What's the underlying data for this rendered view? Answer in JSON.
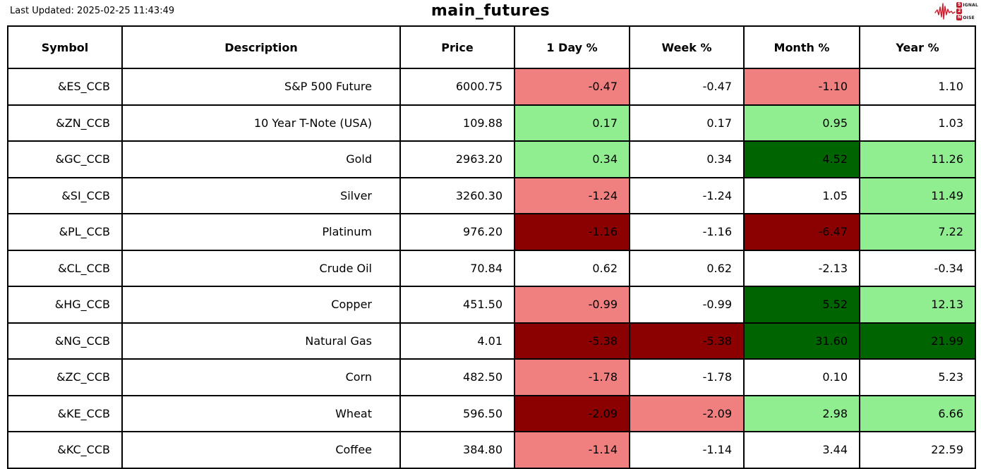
{
  "header": {
    "last_updated": "Last Updated: 2025-02-25 11:43:49",
    "title": "main_futures",
    "logo": {
      "line1_initial": "S",
      "line1_rest": "IGNAL",
      "line2_initial": "2",
      "line3_initial": "N",
      "line3_rest": "OISE",
      "accent_color": "#c41e2e"
    }
  },
  "chart_data": {
    "type": "table",
    "title": "main_futures",
    "columns": [
      "Symbol",
      "Description",
      "Price",
      "1 Day %",
      "Week %",
      "Month %",
      "Year %"
    ],
    "color_legend": {
      "strong_gain": "#006400",
      "gain": "#90ee90",
      "neutral": "#ffffff",
      "loss": "#f08080",
      "strong_loss": "#8b0000",
      "border": "#000000"
    },
    "rows": [
      {
        "symbol": "&ES_CCB",
        "description": "S&P 500 Future",
        "price": "6000.75",
        "day": "-0.47",
        "day_bg": "#f08080",
        "week": "-0.47",
        "week_bg": "",
        "month": "-1.10",
        "month_bg": "#f08080",
        "year": "1.10",
        "year_bg": ""
      },
      {
        "symbol": "&ZN_CCB",
        "description": "10 Year T-Note (USA)",
        "price": "109.88",
        "day": "0.17",
        "day_bg": "#90ee90",
        "week": "0.17",
        "week_bg": "",
        "month": "0.95",
        "month_bg": "#90ee90",
        "year": "1.03",
        "year_bg": ""
      },
      {
        "symbol": "&GC_CCB",
        "description": "Gold",
        "price": "2963.20",
        "day": "0.34",
        "day_bg": "#90ee90",
        "week": "0.34",
        "week_bg": "",
        "month": "4.52",
        "month_bg": "#006400",
        "year": "11.26",
        "year_bg": "#90ee90"
      },
      {
        "symbol": "&SI_CCB",
        "description": "Silver",
        "price": "3260.30",
        "day": "-1.24",
        "day_bg": "#f08080",
        "week": "-1.24",
        "week_bg": "",
        "month": "1.05",
        "month_bg": "",
        "year": "11.49",
        "year_bg": "#90ee90"
      },
      {
        "symbol": "&PL_CCB",
        "description": "Platinum",
        "price": "976.20",
        "day": "-1.16",
        "day_bg": "#8b0000",
        "week": "-1.16",
        "week_bg": "",
        "month": "-6.47",
        "month_bg": "#8b0000",
        "year": "7.22",
        "year_bg": "#90ee90"
      },
      {
        "symbol": "&CL_CCB",
        "description": "Crude Oil",
        "price": "70.84",
        "day": "0.62",
        "day_bg": "",
        "week": "0.62",
        "week_bg": "",
        "month": "-2.13",
        "month_bg": "",
        "year": "-0.34",
        "year_bg": ""
      },
      {
        "symbol": "&HG_CCB",
        "description": "Copper",
        "price": "451.50",
        "day": "-0.99",
        "day_bg": "#f08080",
        "week": "-0.99",
        "week_bg": "",
        "month": "5.52",
        "month_bg": "#006400",
        "year": "12.13",
        "year_bg": "#90ee90"
      },
      {
        "symbol": "&NG_CCB",
        "description": "Natural Gas",
        "price": "4.01",
        "day": "-5.38",
        "day_bg": "#8b0000",
        "week": "-5.38",
        "week_bg": "#8b0000",
        "month": "31.60",
        "month_bg": "#006400",
        "year": "21.99",
        "year_bg": "#006400"
      },
      {
        "symbol": "&ZC_CCB",
        "description": "Corn",
        "price": "482.50",
        "day": "-1.78",
        "day_bg": "#f08080",
        "week": "-1.78",
        "week_bg": "",
        "month": "0.10",
        "month_bg": "",
        "year": "5.23",
        "year_bg": ""
      },
      {
        "symbol": "&KE_CCB",
        "description": "Wheat",
        "price": "596.50",
        "day": "-2.09",
        "day_bg": "#8b0000",
        "week": "-2.09",
        "week_bg": "#f08080",
        "month": "2.98",
        "month_bg": "#90ee90",
        "year": "6.66",
        "year_bg": "#90ee90"
      },
      {
        "symbol": "&KC_CCB",
        "description": "Coffee",
        "price": "384.80",
        "day": "-1.14",
        "day_bg": "#f08080",
        "week": "-1.14",
        "week_bg": "",
        "month": "3.44",
        "month_bg": "",
        "year": "22.59",
        "year_bg": ""
      }
    ]
  }
}
